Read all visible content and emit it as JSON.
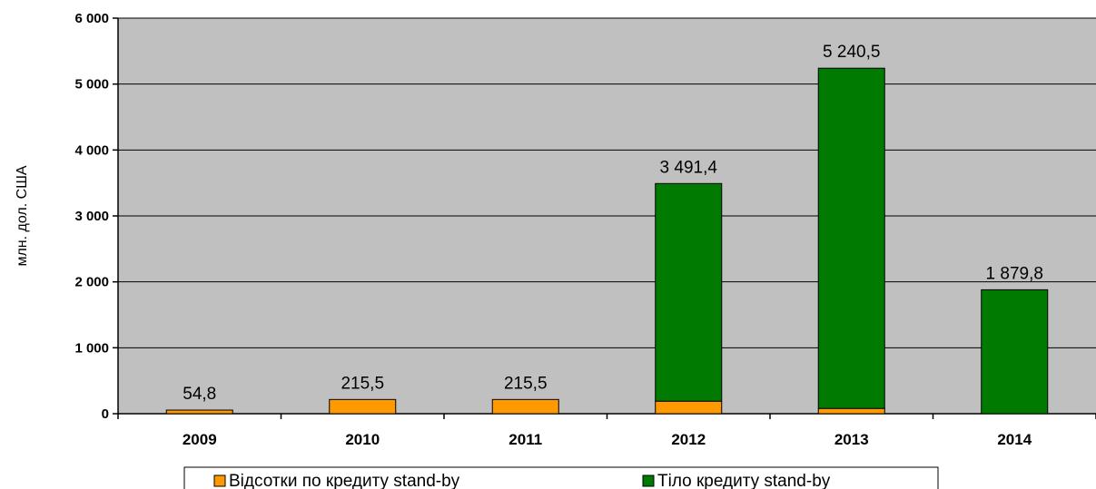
{
  "chart_data": {
    "type": "bar",
    "stacked": true,
    "categories": [
      "2009",
      "2010",
      "2011",
      "2012",
      "2013",
      "2014"
    ],
    "series": [
      {
        "name": "Відсотки по кредиту stand-by",
        "color": "#ff9900",
        "values": [
          54.8,
          215.5,
          215.5,
          190,
          80,
          0
        ]
      },
      {
        "name": "Тіло кредиту stand-by",
        "color": "#007a00",
        "values": [
          0,
          0,
          0,
          3301.4,
          5160.5,
          1879.8
        ]
      }
    ],
    "totals_labels": [
      "54,8",
      "215,5",
      "215,5",
      "3 491,4",
      "5 240,5",
      "1 879,8"
    ],
    "ylabel": "млн. дол. США",
    "ylim": [
      0,
      6000
    ],
    "yticks": [
      0,
      1000,
      2000,
      3000,
      4000,
      5000,
      6000
    ],
    "ytick_labels": [
      "0",
      "1 000",
      "2 000",
      "3 000",
      "4 000",
      "5 000",
      "6 000"
    ],
    "grid": true,
    "plot_background": "#c0c0c0",
    "legend_position": "bottom"
  }
}
